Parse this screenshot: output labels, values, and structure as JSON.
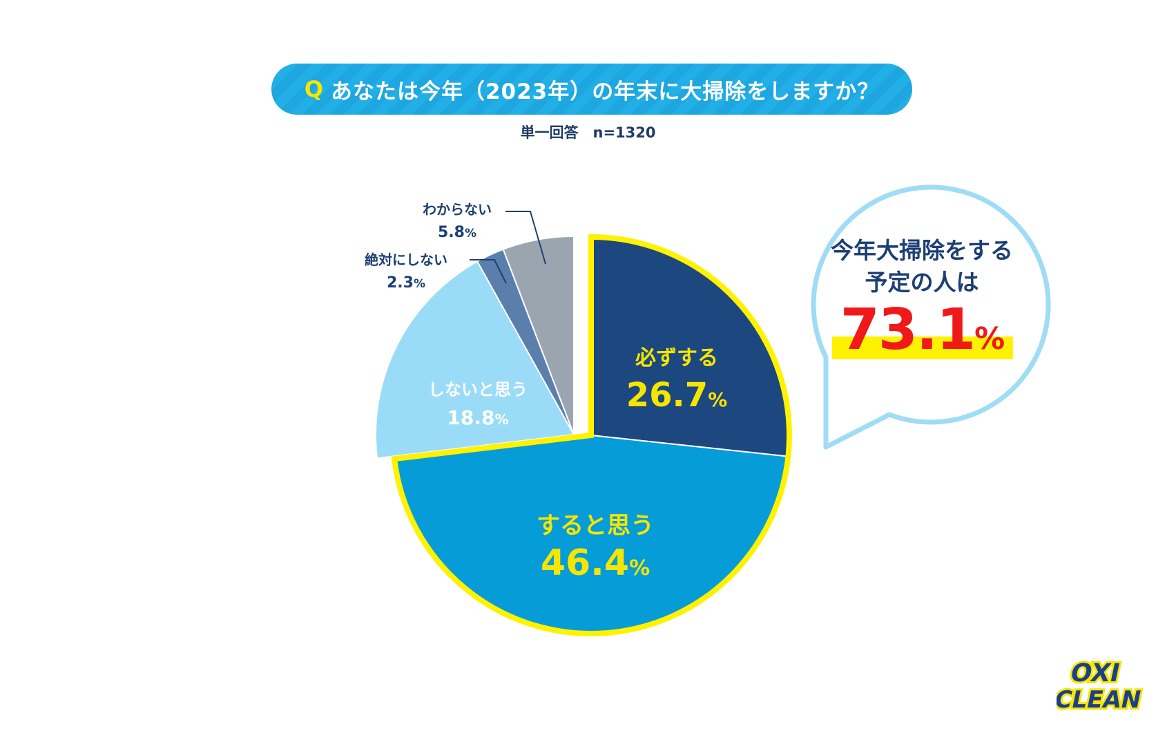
{
  "header": {
    "q_mark": "Q",
    "question": "あなたは今年（2023年）の年末に大掃除をしますか？",
    "note": "単一回答　n=1320"
  },
  "chart_data": {
    "type": "pie",
    "unit": "%",
    "slices": [
      {
        "label": "必ずする",
        "value": 26.7,
        "value_text": "26.7",
        "color": "#1d477f",
        "highlight": true
      },
      {
        "label": "すると思う",
        "value": 46.4,
        "value_text": "46.4",
        "color": "#069cd8",
        "highlight": true
      },
      {
        "label": "しないと思う",
        "value": 18.8,
        "value_text": "18.8",
        "color": "#9adcf8",
        "highlight": false
      },
      {
        "label": "絶対にしない",
        "value": 2.3,
        "value_text": "2.3",
        "color": "#5b7fad",
        "highlight": false
      },
      {
        "label": "わからない",
        "value": 5.8,
        "value_text": "5.8",
        "color": "#9ba5b0",
        "highlight": false
      }
    ],
    "highlight_outline_color": "#fff200"
  },
  "callout": {
    "line1": "今年大掃除をする",
    "line2": "予定の人は",
    "value": "73.1",
    "unit": "%",
    "border_color": "#9fdcf5",
    "value_color": "#f01919",
    "highlight_color": "#fff200"
  },
  "logo": {
    "line1": "OXI",
    "line2": "CLEAN"
  }
}
